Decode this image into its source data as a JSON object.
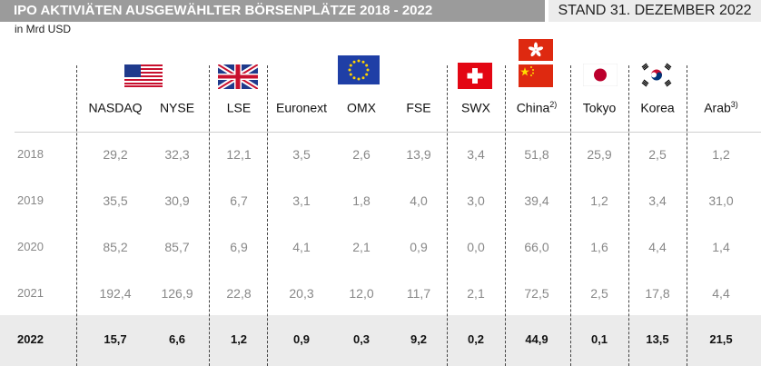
{
  "header": {
    "title": "IPO AKTIVIÄTEN AUSGEWÄHLTER BÖRSENPLÄTZE 2018 - 2022",
    "stand": "STAND 31. DEZEMBER 2022",
    "unit": "in Mrd USD"
  },
  "flags": [
    "usa-flag",
    "uk-flag",
    "eu-flag",
    "switzerland-flag",
    "hong-kong-flag",
    "china-flag",
    "japan-flag",
    "south-korea-flag"
  ],
  "columns": [
    {
      "label": "NASDAQ",
      "sup": ""
    },
    {
      "label": "NYSE",
      "sup": ""
    },
    {
      "label": "LSE",
      "sup": ""
    },
    {
      "label": "Euronext",
      "sup": ""
    },
    {
      "label": "OMX",
      "sup": ""
    },
    {
      "label": "FSE",
      "sup": ""
    },
    {
      "label": "SWX",
      "sup": ""
    },
    {
      "label": "China",
      "sup": "2)"
    },
    {
      "label": "Tokyo",
      "sup": ""
    },
    {
      "label": "Korea",
      "sup": ""
    },
    {
      "label": "Arab",
      "sup": "3)"
    }
  ],
  "rows": [
    {
      "year": "2018",
      "values": [
        "29,2",
        "32,3",
        "12,1",
        "3,5",
        "2,6",
        "13,9",
        "3,4",
        "51,8",
        "25,9",
        "2,5",
        "1,2"
      ]
    },
    {
      "year": "2019",
      "values": [
        "35,5",
        "30,9",
        "6,7",
        "3,1",
        "1,8",
        "4,0",
        "3,0",
        "39,4",
        "1,2",
        "3,4",
        "31,0"
      ]
    },
    {
      "year": "2020",
      "values": [
        "85,2",
        "85,7",
        "6,9",
        "4,1",
        "2,1",
        "0,9",
        "0,0",
        "66,0",
        "1,6",
        "4,4",
        "1,4"
      ]
    },
    {
      "year": "2021",
      "values": [
        "192,4",
        "126,9",
        "22,8",
        "20,3",
        "12,0",
        "11,7",
        "2,1",
        "72,5",
        "2,5",
        "17,8",
        "4,4"
      ]
    },
    {
      "year": "2022",
      "values": [
        "15,7",
        "6,6",
        "1,2",
        "0,9",
        "0,3",
        "9,2",
        "0,2",
        "44,9",
        "0,1",
        "13,5",
        "21,5"
      ],
      "highlight": true
    }
  ]
}
